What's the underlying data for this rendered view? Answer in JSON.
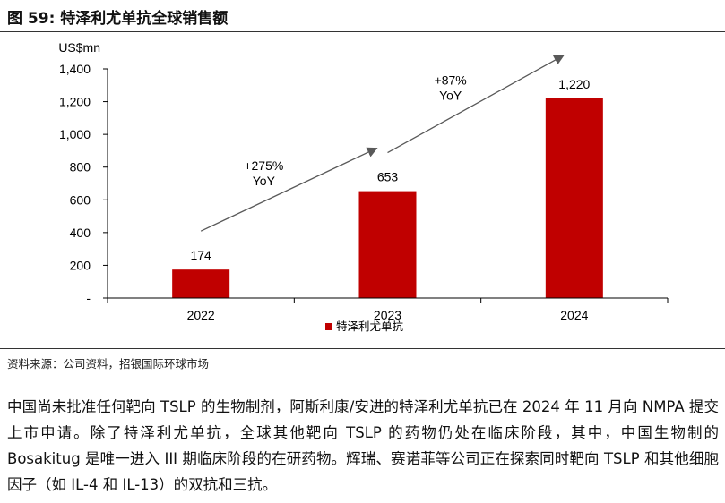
{
  "figure_title": "图 59: 特泽利尤单抗全球销售额",
  "source": "资料来源：公司资料，招银国际环球市场",
  "body_paragraph": "中国尚未批准任何靶向 TSLP 的生物制剂，阿斯利康/安进的特泽利尤单抗已在 2024 年 11 月向 NMPA 提交上市申请。除了特泽利尤单抗，全球其他靶向 TSLP 的药物仍处在临床阶段，其中，中国生物制的 Bosakitug 是唯一进入 III 期临床阶段的在研药物。辉瑞、赛诺菲等公司正在探索同时靶向 TSLP 和其他细胞因子（如 IL-4 和 IL-13）的双抗和三抗。",
  "chart_data": {
    "type": "bar",
    "title": "",
    "ylabel": "US$mn",
    "xlabel": "",
    "categories": [
      "2022",
      "2023",
      "2024"
    ],
    "series": [
      {
        "name": "特泽利尤单抗",
        "values": [
          174,
          653,
          1220
        ],
        "color": "#c00000"
      }
    ],
    "data_labels": [
      "174",
      "653",
      "1,220"
    ],
    "ylim": [
      0,
      1400
    ],
    "yticks": [
      0,
      200,
      400,
      600,
      800,
      1000,
      1200,
      1400
    ],
    "ytick_labels": [
      "-",
      "200",
      "400",
      "600",
      "800",
      "1,000",
      "1,200",
      "1,400"
    ],
    "grid": false,
    "legend": "bottom",
    "annotations": [
      {
        "from": "2022",
        "to": "2023",
        "text": [
          "+275%",
          "YoY"
        ]
      },
      {
        "from": "2023",
        "to": "2024",
        "text": [
          "+87%",
          "YoY"
        ]
      }
    ],
    "arrow_color": "#595959"
  }
}
